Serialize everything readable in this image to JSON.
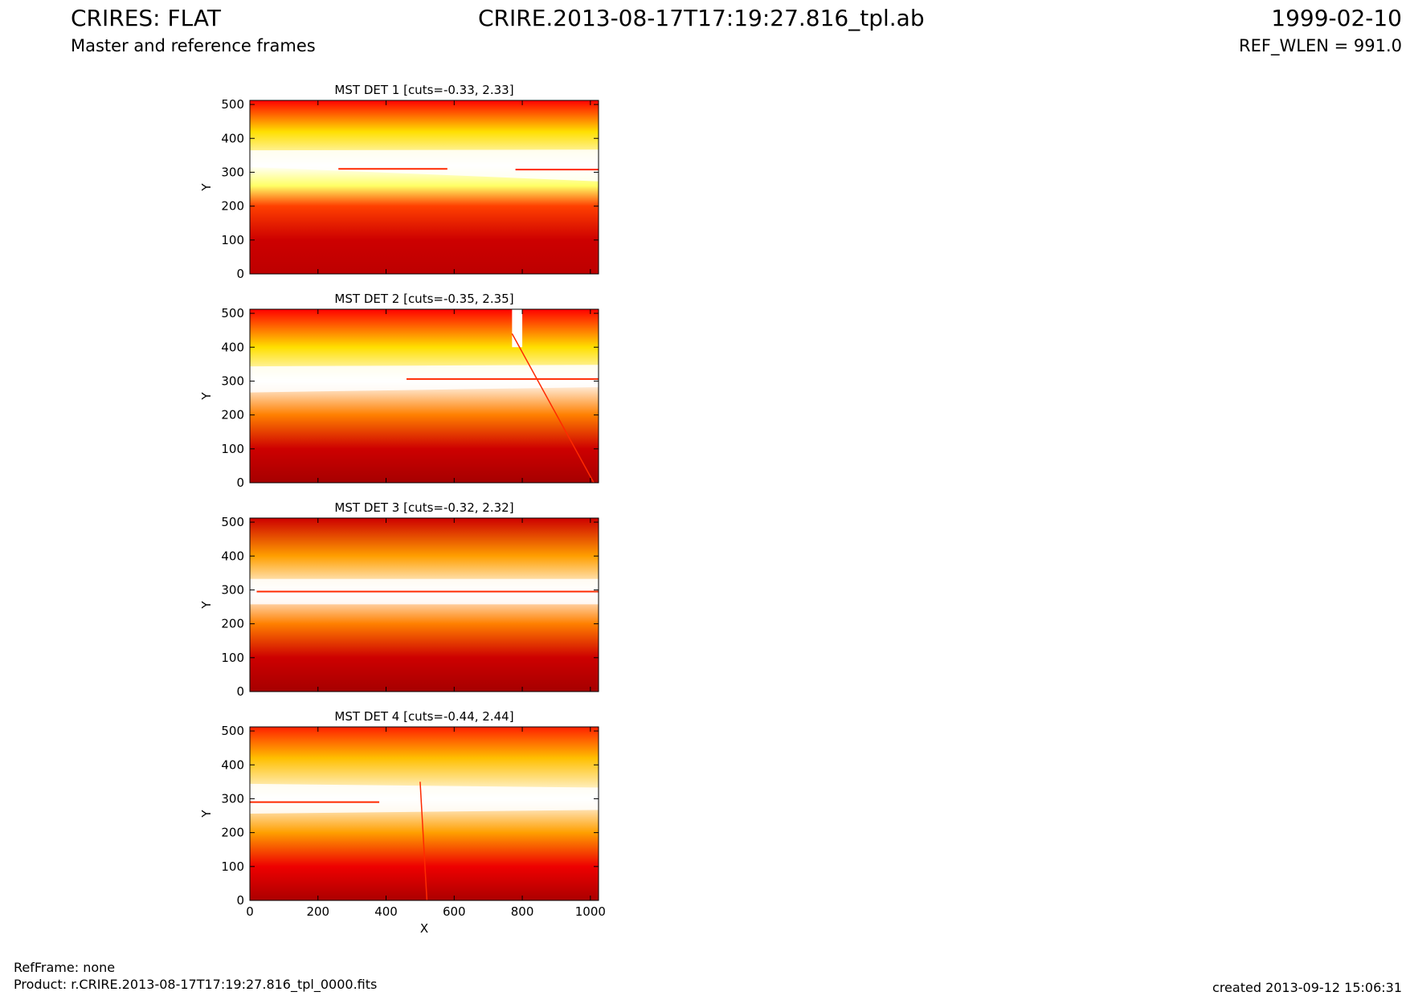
{
  "header": {
    "title": "CRIRES: FLAT",
    "subtitle": "Master and reference frames",
    "filename": "CRIRE.2013-08-17T17:19:27.816_tpl.ab",
    "date": "1999-02-10",
    "ref_wlen": "REF_WLEN = 991.0"
  },
  "footer": {
    "ref_frame": "RefFrame: none",
    "product": "Product: r.CRIRE.2013-08-17T17:19:27.816_tpl_0000.fits",
    "created": "created 2013-09-12 15:06:31"
  },
  "colormap": {
    "name": "hot",
    "dark": "#8b0000",
    "mid": "#ff2a00",
    "bright": "#ffff00",
    "white": "#ffffff"
  },
  "chart_data": [
    {
      "type": "heatmap",
      "title": "MST DET 1 [cuts=-0.33, 2.33]",
      "xlabel": "",
      "ylabel": "Y",
      "xlim": [
        0,
        1024
      ],
      "ylim": [
        0,
        512
      ],
      "xticks": [],
      "yticks": [
        0,
        100,
        200,
        300,
        400,
        500
      ],
      "band_center": [
        340,
        320
      ],
      "band_halfwidth": [
        45,
        85
      ],
      "bright_y_profile": [
        {
          "y": 0,
          "level": 0.15
        },
        {
          "y": 100,
          "level": 0.2
        },
        {
          "y": 200,
          "level": 0.45
        },
        {
          "y": 260,
          "level": 0.85
        },
        {
          "y": 320,
          "level": 1.0
        },
        {
          "y": 420,
          "level": 0.7
        },
        {
          "y": 512,
          "level": 0.35
        }
      ],
      "streaks": [
        {
          "x1": 260,
          "x2": 580,
          "y": 310
        },
        {
          "x1": 780,
          "x2": 1024,
          "y": 308
        }
      ]
    },
    {
      "type": "heatmap",
      "title": "MST DET 2 [cuts=-0.35, 2.35]",
      "xlabel": "",
      "ylabel": "Y",
      "xlim": [
        0,
        1024
      ],
      "ylim": [
        0,
        512
      ],
      "xticks": [],
      "yticks": [
        0,
        100,
        200,
        300,
        400,
        500
      ],
      "band_center": [
        305,
        315
      ],
      "band_halfwidth": [
        70,
        60
      ],
      "bright_y_profile": [
        {
          "y": 0,
          "level": 0.08
        },
        {
          "y": 100,
          "level": 0.2
        },
        {
          "y": 200,
          "level": 0.55
        },
        {
          "y": 300,
          "level": 1.0
        },
        {
          "y": 400,
          "level": 0.7
        },
        {
          "y": 512,
          "level": 0.35
        }
      ],
      "streaks": [
        {
          "x1": 460,
          "x2": 1024,
          "y": 306
        }
      ],
      "diagonal": {
        "x1": 770,
        "y1": 440,
        "x2": 1010,
        "y2": 0
      },
      "bright_column": {
        "x1": 770,
        "x2": 800
      }
    },
    {
      "type": "heatmap",
      "title": "MST DET 3 [cuts=-0.32, 2.32]",
      "xlabel": "",
      "ylabel": "Y",
      "xlim": [
        0,
        1024
      ],
      "ylim": [
        0,
        512
      ],
      "xticks": [],
      "yticks": [
        0,
        100,
        200,
        300,
        400,
        500
      ],
      "band_center": [
        295,
        295
      ],
      "band_halfwidth": [
        68,
        68
      ],
      "bright_y_profile": [
        {
          "y": 0,
          "level": 0.08
        },
        {
          "y": 100,
          "level": 0.2
        },
        {
          "y": 200,
          "level": 0.55
        },
        {
          "y": 295,
          "level": 1.0
        },
        {
          "y": 400,
          "level": 0.6
        },
        {
          "y": 512,
          "level": 0.2
        }
      ],
      "streaks": [
        {
          "x1": 20,
          "x2": 1024,
          "y": 295
        }
      ]
    },
    {
      "type": "heatmap",
      "title": "MST DET 4 [cuts=-0.44, 2.44]",
      "xlabel": "X",
      "ylabel": "Y",
      "xlim": [
        0,
        1024
      ],
      "ylim": [
        0,
        512
      ],
      "xticks": [
        0,
        200,
        400,
        600,
        800,
        1000
      ],
      "yticks": [
        0,
        100,
        200,
        300,
        400,
        500
      ],
      "band_center": [
        300,
        300
      ],
      "band_halfwidth": [
        80,
        60
      ],
      "bright_y_profile": [
        {
          "y": 0,
          "level": 0.1
        },
        {
          "y": 100,
          "level": 0.3
        },
        {
          "y": 200,
          "level": 0.6
        },
        {
          "y": 300,
          "level": 1.0
        },
        {
          "y": 420,
          "level": 0.65
        },
        {
          "y": 512,
          "level": 0.4
        }
      ],
      "streaks": [
        {
          "x1": 0,
          "x2": 380,
          "y": 290
        }
      ],
      "diagonal": {
        "x1": 500,
        "y1": 350,
        "x2": 520,
        "y2": 0
      }
    }
  ]
}
